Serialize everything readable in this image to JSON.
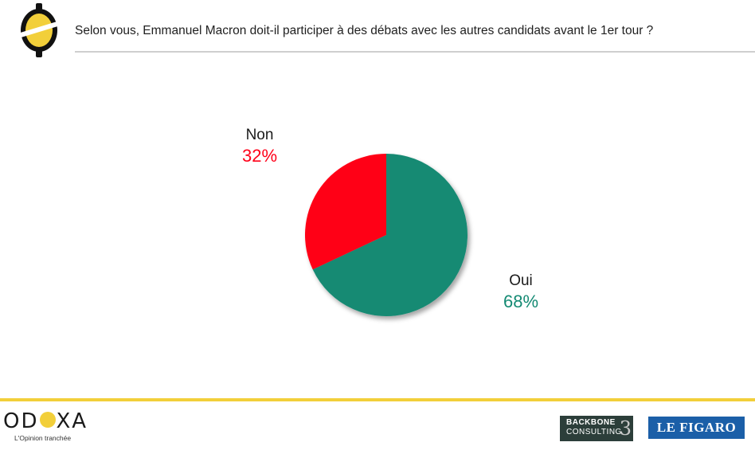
{
  "header": {
    "question": "Selon vous, Emmanuel Macron doit-il participer à des débats avec les autres candidats avant le 1er tour ?"
  },
  "chart_data": {
    "type": "pie",
    "title": "Selon vous, Emmanuel Macron doit-il participer à des débats avec les autres candidats avant le 1er tour ?",
    "slices": [
      {
        "label": "Oui",
        "value": 68,
        "display": "68%",
        "color": "#148a73"
      },
      {
        "label": "Non",
        "value": 32,
        "display": "32%",
        "color": "#ff0019"
      }
    ]
  },
  "footer": {
    "odoxa_name": "ODOXA",
    "odoxa_tagline": "L'Opinion tranchée",
    "backbone_line1": "BACKBONE",
    "backbone_line2": "CONSULTING",
    "backbone_mark": "3",
    "figaro": "LE FIGARO"
  },
  "colors": {
    "accent": "#f2cf3a",
    "oui": "#148a73",
    "non": "#ff0019"
  }
}
